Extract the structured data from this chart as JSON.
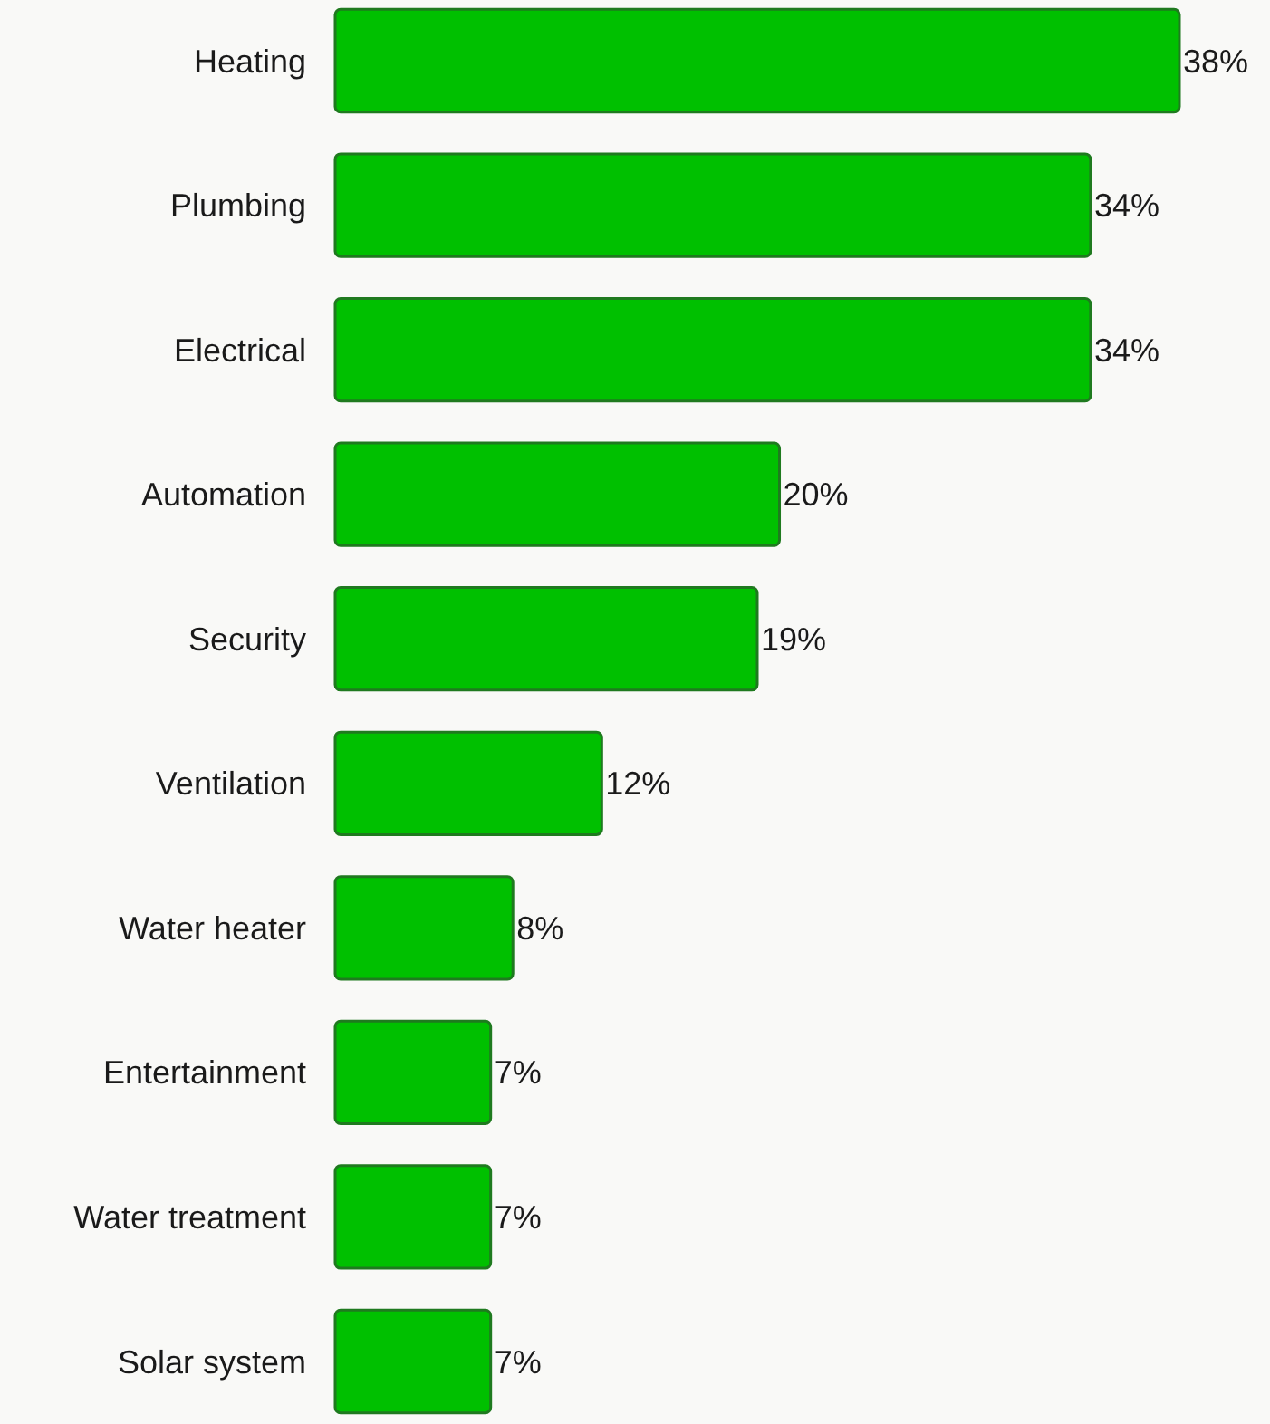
{
  "chart_data": {
    "type": "bar",
    "orientation": "horizontal",
    "categories": [
      "Heating",
      "Plumbing",
      "Electrical",
      "Automation",
      "Security",
      "Ventilation",
      "Water heater",
      "Entertainment",
      "Water treatment",
      "Solar system"
    ],
    "values": [
      38,
      34,
      34,
      20,
      19,
      12,
      8,
      7,
      7,
      7
    ],
    "value_labels": [
      "38%",
      "34%",
      "34%",
      "20%",
      "19%",
      "12%",
      "8%",
      "7%",
      "7%",
      "7%"
    ],
    "color": "#00c000"
  }
}
